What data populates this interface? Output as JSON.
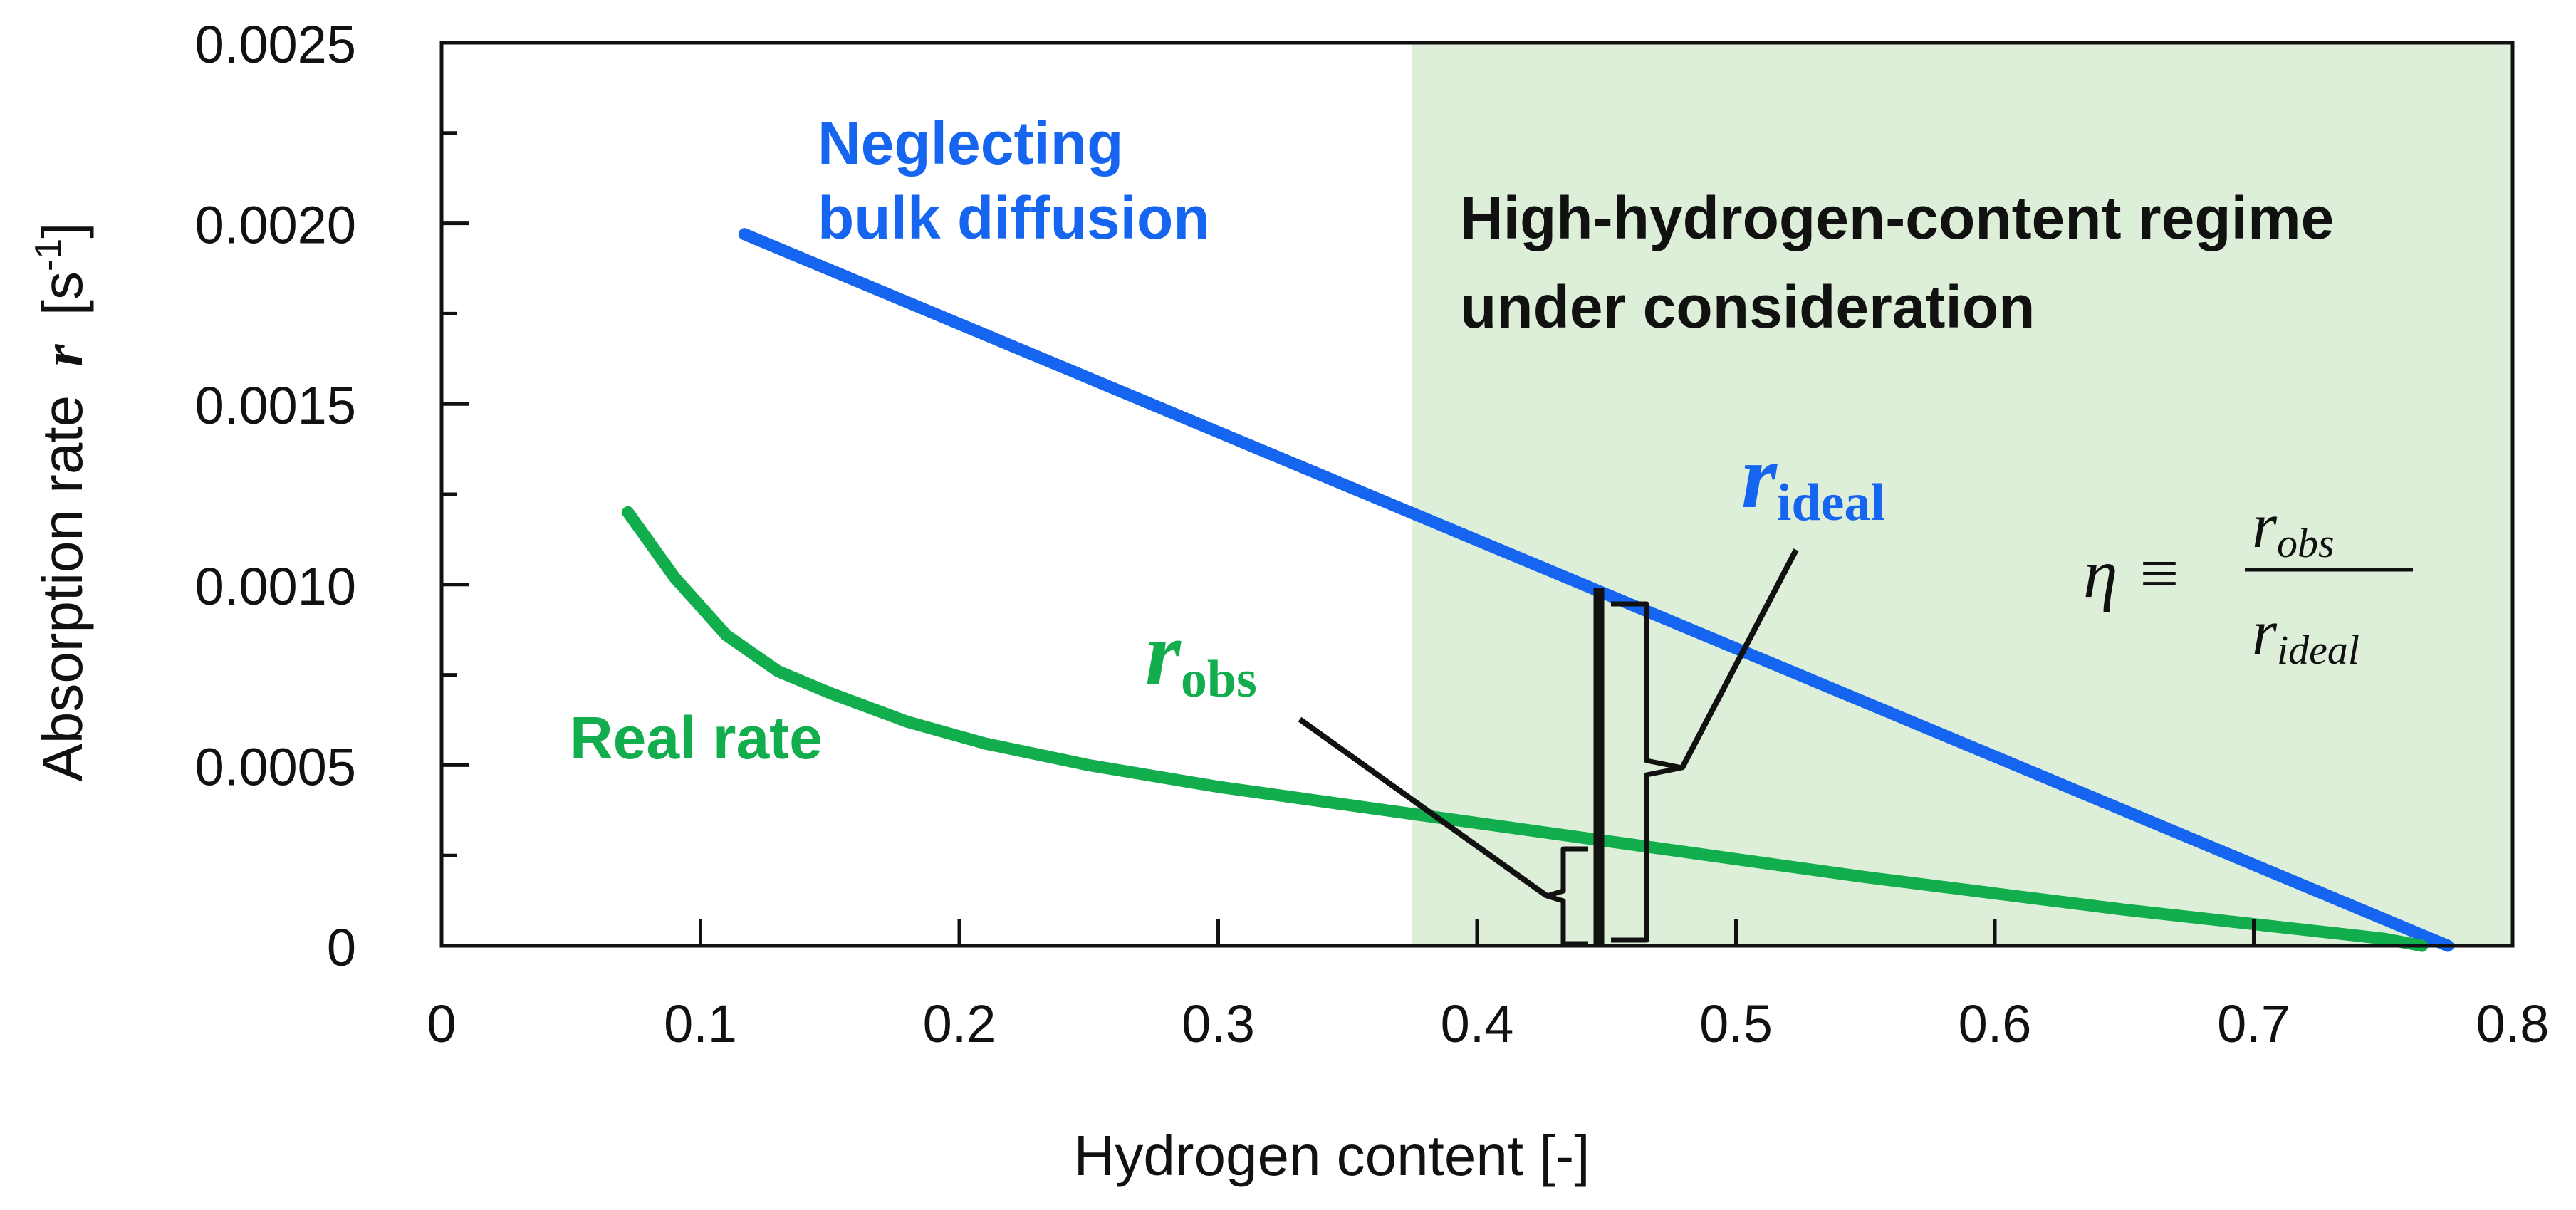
{
  "chart_data": {
    "type": "line",
    "xlabel": "Hydrogen content [-]",
    "ylabel_main": "Absorption rate",
    "ylabel_symbol": "r",
    "ylabel_unit_open": "[s",
    "ylabel_unit_exp": "-1",
    "ylabel_unit_close": "]",
    "xlim": [
      0,
      0.8
    ],
    "ylim": [
      0,
      0.0025
    ],
    "x_ticks": [
      "0",
      "0.1",
      "0.2",
      "0.3",
      "0.4",
      "0.5",
      "0.6",
      "0.7",
      "0.8"
    ],
    "y_ticks": [
      "0",
      "0.0005",
      "0.0010",
      "0.0015",
      "0.0020",
      "0.0025"
    ],
    "grid": false,
    "region": {
      "x_start": 0.375,
      "x_end": 0.8,
      "color": "#deefd9",
      "label_line1": "High-hydrogen-content regime",
      "label_line2": "under consideration"
    },
    "series": [
      {
        "name": "Neglecting bulk diffusion",
        "label_line1": "Neglecting",
        "label_line2": "bulk diffusion",
        "color": "#1565f0",
        "x": [
          0.117,
          0.775
        ],
        "y": [
          0.00197,
          0.0
        ]
      },
      {
        "name": "Real rate",
        "label": "Real rate",
        "color": "#12ad4c",
        "x": [
          0.072,
          0.09,
          0.11,
          0.13,
          0.15,
          0.18,
          0.21,
          0.25,
          0.3,
          0.35,
          0.4,
          0.45,
          0.5,
          0.55,
          0.6,
          0.65,
          0.7,
          0.75,
          0.765
        ],
        "y": [
          0.0012,
          0.00102,
          0.00086,
          0.00076,
          0.0007,
          0.00062,
          0.00056,
          0.0005,
          0.00044,
          0.00039,
          0.00034,
          0.00029,
          0.00024,
          0.00019,
          0.000145,
          0.0001,
          6e-05,
          2e-05,
          0.0
        ]
      }
    ],
    "annotations": {
      "marker_x": 0.448,
      "r_obs": {
        "symbol": "r",
        "subscript": "obs",
        "color": "#12ad4c",
        "value": 0.00027
      },
      "r_ideal": {
        "symbol": "r",
        "subscript": "ideal",
        "color": "#1565f0",
        "value": 0.00097
      },
      "efficiency": {
        "lhs": "η ≡",
        "numerator": "r",
        "numerator_sub": "obs",
        "denominator": "r",
        "denominator_sub": "ideal"
      }
    }
  }
}
